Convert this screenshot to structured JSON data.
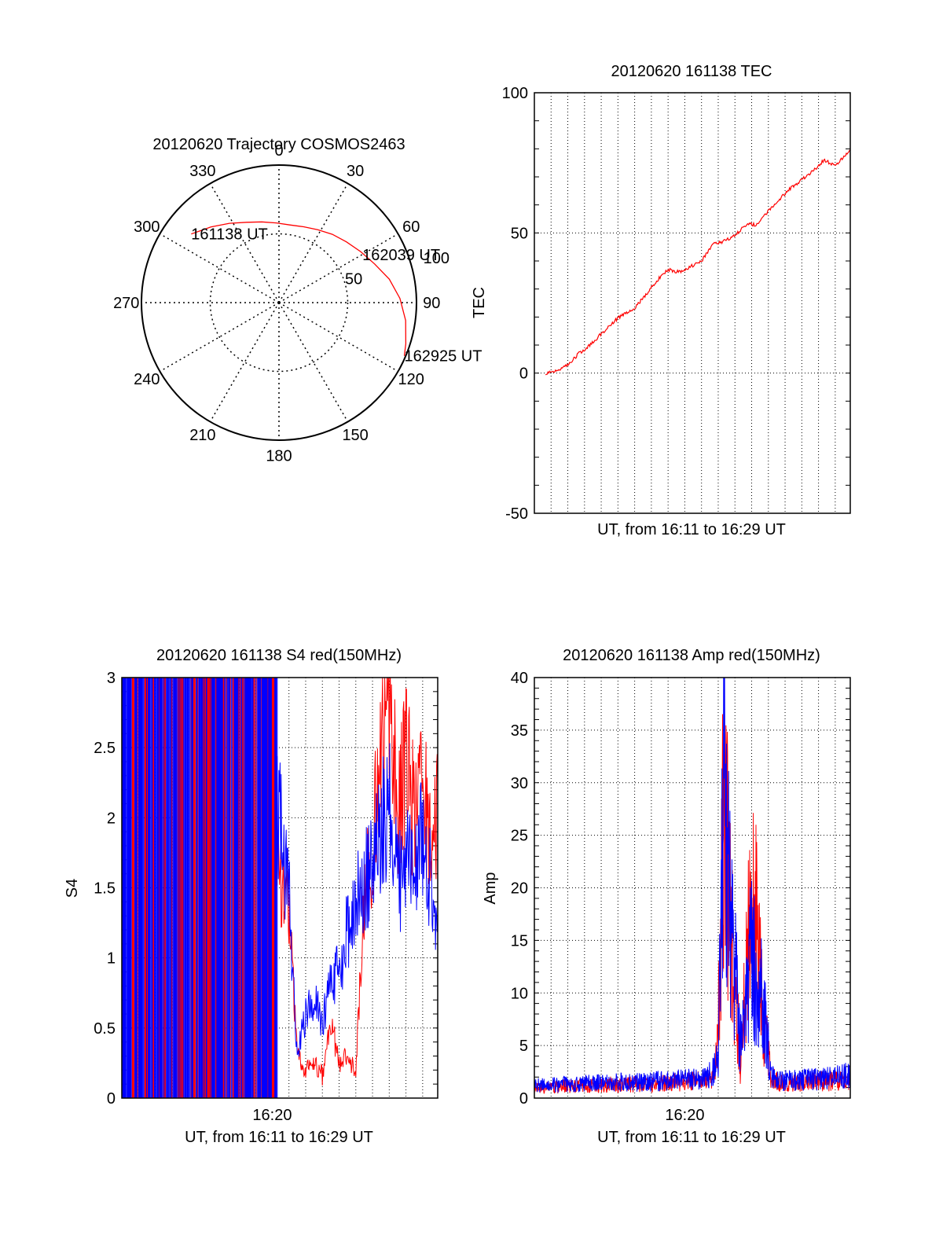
{
  "colors": {
    "red": "#ff0000",
    "blue": "#0000ff",
    "axis": "#000000",
    "grid": "#000000"
  },
  "chart_data": [
    {
      "type": "polar",
      "title": "20120620 Trajectory COSMOS2463",
      "angle_labels": [
        "0",
        "30",
        "60",
        "90",
        "120",
        "150",
        "180",
        "210",
        "240",
        "270",
        "300",
        "330"
      ],
      "radial_labels": [
        "50",
        "100"
      ],
      "radial_values": [
        50,
        100
      ],
      "rlim": [
        0,
        100
      ],
      "direction": "clockwise-from-north",
      "grid": true,
      "series": [
        {
          "color": "#ff0000",
          "points": [
            [
              308,
              81
            ],
            [
              318,
              74
            ],
            [
              328,
              68
            ],
            [
              338,
              63
            ],
            [
              348,
              60
            ],
            [
              358,
              58
            ],
            [
              8,
              57
            ],
            [
              18,
              58
            ],
            [
              28,
              60
            ],
            [
              38,
              63
            ],
            [
              48,
              66
            ],
            [
              58,
              70
            ],
            [
              68,
              75
            ],
            [
              78,
              82
            ],
            [
              88,
              88
            ],
            [
              98,
              93
            ],
            [
              108,
              97
            ],
            [
              113,
              99
            ]
          ]
        }
      ],
      "annotations": [
        {
          "text": "161138 UT",
          "az": 308,
          "r": 81
        },
        {
          "text": "162039 UT",
          "az": 60,
          "r": 70
        },
        {
          "text": "162925 UT",
          "az": 113,
          "r": 99
        }
      ]
    },
    {
      "type": "line",
      "title": "20120620 161138 TEC",
      "xlabel": "UT, from 16:11 to 16:29 UT",
      "ylabel": "TEC",
      "ylim": [
        -50,
        100
      ],
      "yticks": [
        -50,
        0,
        50,
        100
      ],
      "xlim_sec": [
        0,
        1134
      ],
      "grid": true,
      "series": [
        {
          "color": "#ff0000",
          "x": [
            40,
            80,
            120,
            160,
            200,
            240,
            280,
            320,
            360,
            400,
            440,
            480,
            520,
            560,
            600,
            640,
            680,
            720,
            760,
            800,
            840,
            880,
            920,
            960,
            1000,
            1040,
            1080,
            1110,
            1134
          ],
          "y": [
            0,
            1,
            3,
            7,
            10,
            14,
            18,
            21,
            23,
            28,
            33,
            37,
            36,
            38,
            40,
            46,
            47,
            49,
            53,
            53,
            58,
            62,
            66,
            69,
            72,
            76,
            74,
            77,
            80
          ]
        }
      ]
    },
    {
      "type": "line",
      "title": "20120620 161138 S4 red(150MHz)",
      "xlabel": "UT, from 16:11 to 16:29 UT",
      "ylabel": "S4",
      "ylim": [
        0,
        3
      ],
      "yticks": [
        0,
        0.5,
        1,
        1.5,
        2,
        2.5,
        3
      ],
      "yticklabels": [
        "0",
        "0.5",
        "1",
        "1.5",
        "2",
        "2.5",
        "3"
      ],
      "xticklabels": [
        "16:20"
      ],
      "xlim_sec": [
        0,
        1134
      ],
      "grid": true,
      "series": [
        {
          "color": "#ff0000",
          "x": [
            540,
            570,
            600,
            630,
            660,
            690,
            720,
            750,
            780,
            810,
            840,
            870,
            900,
            930,
            960,
            990,
            1020,
            1050,
            1080,
            1110,
            1134
          ],
          "y": [
            2.2,
            1.6,
            1.3,
            0.3,
            0.2,
            0.25,
            0.15,
            0.55,
            0.25,
            0.3,
            0.2,
            1.4,
            1.8,
            2.5,
            2.7,
            2.1,
            2.4,
            2.0,
            2.2,
            1.8,
            2.0
          ]
        },
        {
          "color": "#0000ff",
          "x": [
            540,
            570,
            600,
            630,
            660,
            690,
            720,
            750,
            780,
            810,
            840,
            870,
            900,
            930,
            960,
            990,
            1020,
            1050,
            1080,
            1110,
            1134
          ],
          "y": [
            2.3,
            1.9,
            1.5,
            0.3,
            0.6,
            0.7,
            0.55,
            0.8,
            0.9,
            1.2,
            1.4,
            1.5,
            1.7,
            1.9,
            2.1,
            1.5,
            1.7,
            1.6,
            1.9,
            1.5,
            1.2
          ]
        }
      ]
    },
    {
      "type": "line",
      "title": "20120620 161138 Amp red(150MHz)",
      "xlabel": "UT, from 16:11 to 16:29 UT",
      "ylabel": "Amp",
      "ylim": [
        0,
        40
      ],
      "yticks": [
        0,
        5,
        10,
        15,
        20,
        25,
        30,
        35,
        40
      ],
      "xticklabels": [
        "16:20"
      ],
      "xlim_sec": [
        0,
        1134
      ],
      "grid": true,
      "series": [
        {
          "color": "#ff0000",
          "x": [
            0,
            100,
            200,
            300,
            400,
            500,
            600,
            640,
            660,
            680,
            700,
            720,
            740,
            760,
            780,
            800,
            820,
            850,
            880,
            910,
            940,
            980,
            1020,
            1060,
            1100,
            1134
          ],
          "y": [
            1,
            1.1,
            1.2,
            1.3,
            1.3,
            1.5,
            1.6,
            2,
            6,
            30,
            18,
            11,
            3,
            12,
            18,
            16,
            8,
            2,
            1.4,
            1.4,
            1.5,
            1.5,
            1.6,
            1.6,
            1.7,
            1.8
          ]
        },
        {
          "color": "#0000ff",
          "x": [
            0,
            100,
            200,
            300,
            400,
            500,
            600,
            640,
            660,
            680,
            700,
            720,
            740,
            760,
            780,
            800,
            820,
            850,
            880,
            910,
            940,
            980,
            1020,
            1060,
            1100,
            1134
          ],
          "y": [
            1.2,
            1.3,
            1.4,
            1.5,
            1.5,
            1.7,
            1.8,
            2.5,
            4,
            33,
            20,
            12,
            5,
            8,
            14,
            10,
            10,
            2,
            1.6,
            1.7,
            1.7,
            1.8,
            1.8,
            1.9,
            2.0,
            2.2
          ]
        }
      ]
    }
  ]
}
